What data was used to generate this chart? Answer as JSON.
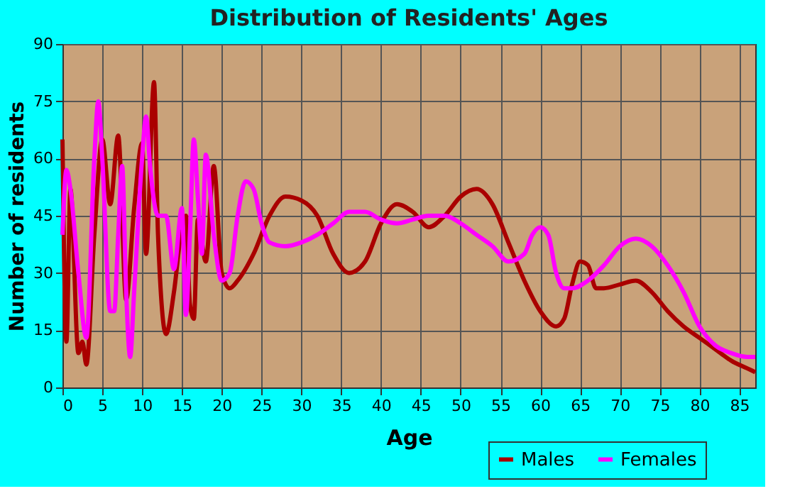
{
  "chart_data": {
    "type": "line",
    "title": "Distribution of Residents' Ages",
    "xlabel": "Age",
    "ylabel": "Number of residents",
    "xlim": [
      0,
      87
    ],
    "xticks": [
      0,
      5,
      10,
      15,
      20,
      25,
      30,
      35,
      40,
      45,
      50,
      55,
      60,
      65,
      70,
      75,
      80,
      85
    ],
    "ylim": [
      0,
      90
    ],
    "yticks": [
      0,
      15,
      30,
      45,
      60,
      75,
      90
    ],
    "grid": true,
    "legend": "bottom right",
    "marker": "none",
    "line_style": "solid",
    "series": [
      {
        "name": "Males",
        "color": "#aa0000",
        "x": [
          0,
          0.5,
          1,
          2,
          2.5,
          3,
          4,
          5,
          6,
          7,
          8,
          9,
          10,
          10.5,
          11.5,
          12,
          13,
          14,
          15,
          15.5,
          16,
          16.5,
          17,
          18,
          19,
          20,
          21,
          22,
          24,
          26,
          28,
          30,
          32,
          34,
          36,
          38,
          40,
          42,
          44,
          46,
          48,
          50,
          52,
          54,
          56,
          58,
          60,
          62,
          63,
          64,
          65,
          66,
          67,
          68,
          70,
          72,
          74,
          76,
          78,
          80,
          82,
          84,
          86,
          87
        ],
        "values": [
          65,
          12,
          52,
          9,
          12,
          6,
          40,
          65,
          48,
          66,
          23,
          47,
          64,
          35,
          80,
          40,
          14,
          25,
          42,
          45,
          22,
          18,
          44,
          33,
          58,
          30,
          26,
          28,
          35,
          45,
          50,
          49,
          45,
          35,
          30,
          33,
          43,
          48,
          46,
          42,
          45,
          50,
          52,
          48,
          38,
          28,
          20,
          16,
          18,
          27,
          33,
          32,
          26,
          26,
          27,
          28,
          25,
          20,
          16,
          13,
          10,
          7,
          5,
          4
        ]
      },
      {
        "name": "Females",
        "color": "#ff00ff",
        "x": [
          0,
          0.5,
          1,
          2,
          3,
          4,
          4.5,
          5,
          6,
          6.5,
          7,
          7.5,
          8,
          8.5,
          9,
          10,
          10.5,
          11,
          12,
          13,
          14,
          15,
          15.5,
          16,
          16.5,
          17,
          17.5,
          18,
          19,
          20,
          21,
          22,
          23,
          24,
          25,
          26,
          28,
          30,
          32,
          34,
          36,
          38,
          40,
          42,
          44,
          46,
          48,
          50,
          52,
          54,
          56,
          58,
          59,
          60,
          61,
          62,
          63,
          64,
          66,
          68,
          70,
          72,
          74,
          76,
          78,
          80,
          82,
          84,
          86,
          87
        ],
        "values": [
          40,
          57,
          52,
          30,
          13,
          60,
          75,
          60,
          20,
          20,
          40,
          58,
          25,
          8,
          25,
          60,
          71,
          58,
          45,
          45,
          31,
          47,
          19,
          40,
          65,
          50,
          35,
          61,
          40,
          28,
          30,
          45,
          54,
          52,
          43,
          38,
          37,
          38,
          40,
          43,
          46,
          46,
          44,
          43,
          44,
          45,
          45,
          43,
          40,
          37,
          33,
          35,
          40,
          42,
          40,
          30,
          26,
          26,
          28,
          32,
          37,
          39,
          37,
          32,
          25,
          16,
          11,
          9,
          8,
          8
        ]
      }
    ]
  }
}
